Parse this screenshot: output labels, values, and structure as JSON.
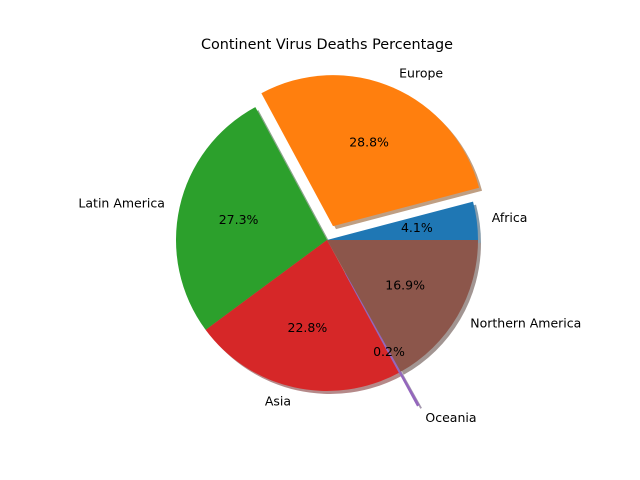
{
  "chart_data": {
    "type": "pie",
    "title": "Continent Virus Deaths Percentage",
    "start_angle_deg": 0,
    "direction": "counterclockwise",
    "shadow": true,
    "slices": [
      {
        "label": "Africa",
        "value": 4.1,
        "pct_text": "4.1%",
        "color": "#1f77b4",
        "explode": 0
      },
      {
        "label": "Europe",
        "value": 28.8,
        "pct_text": "28.8%",
        "color": "#ff7f0e",
        "explode": 0.1
      },
      {
        "label": "Latin America",
        "value": 27.3,
        "pct_text": "27.3%",
        "color": "#2ca02c",
        "explode": 0
      },
      {
        "label": "Asia",
        "value": 22.8,
        "pct_text": "22.8%",
        "color": "#d62728",
        "explode": 0
      },
      {
        "label": "Oceania",
        "value": 0.2,
        "pct_text": "0.2%",
        "color": "#9467bd",
        "explode": 0.25
      },
      {
        "label": "Northern America",
        "value": 16.9,
        "pct_text": "16.9%",
        "color": "#8c564b",
        "explode": 0
      }
    ]
  }
}
